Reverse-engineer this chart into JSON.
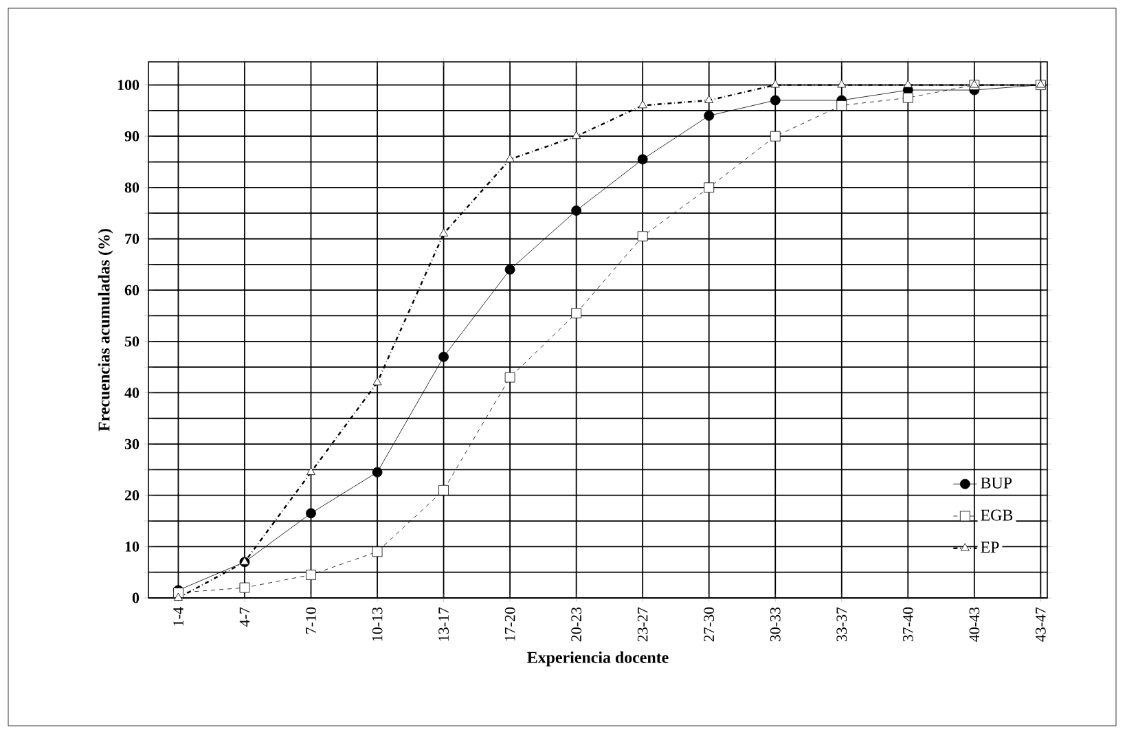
{
  "chart_data": {
    "type": "line",
    "xlabel": "Experiencia docente",
    "ylabel": "Frecuencias acumuladas (%)",
    "categories": [
      "1-4",
      "4-7",
      "7-10",
      "10-13",
      "13-17",
      "17-20",
      "20-23",
      "23-27",
      "27-30",
      "30-33",
      "33-37",
      "37-40",
      "40-43",
      "43-47"
    ],
    "series": [
      {
        "name": "BUP",
        "color": "#000000",
        "marker": "circle",
        "line_style": "solid",
        "values": [
          1.5,
          7,
          16.5,
          24.5,
          47,
          64,
          75.5,
          85.5,
          94,
          97,
          97,
          99,
          99,
          100
        ]
      },
      {
        "name": "EGB",
        "color": "#000000",
        "marker": "square",
        "line_style": "dashed",
        "values": [
          1,
          2,
          4.5,
          9,
          21,
          43,
          55.5,
          70.5,
          80,
          90,
          96,
          97.5,
          100,
          100
        ]
      },
      {
        "name": "EP",
        "color": "#000000",
        "marker": "triangle",
        "line_style": "dashdot",
        "values": [
          0,
          7,
          24.5,
          42,
          71,
          85.5,
          90,
          96,
          97,
          100,
          100,
          100,
          100,
          100
        ]
      }
    ],
    "ylim": [
      0,
      104.5
    ],
    "yticks": [
      0,
      {
        "value": 5,
        "label": null
      },
      10,
      {
        "value": 15,
        "label": null
      },
      20,
      {
        "value": 25,
        "label": null
      },
      30,
      {
        "value": 35,
        "label": null
      },
      40,
      {
        "value": 45,
        "label": null
      },
      50,
      {
        "value": 55,
        "label": null
      },
      60,
      {
        "value": 65,
        "label": null
      },
      70,
      {
        "value": 75,
        "label": null
      },
      80,
      {
        "value": 85,
        "label": null
      },
      90,
      {
        "value": 95,
        "label": null
      },
      100
    ],
    "grid": true,
    "legend": "bottom right"
  }
}
